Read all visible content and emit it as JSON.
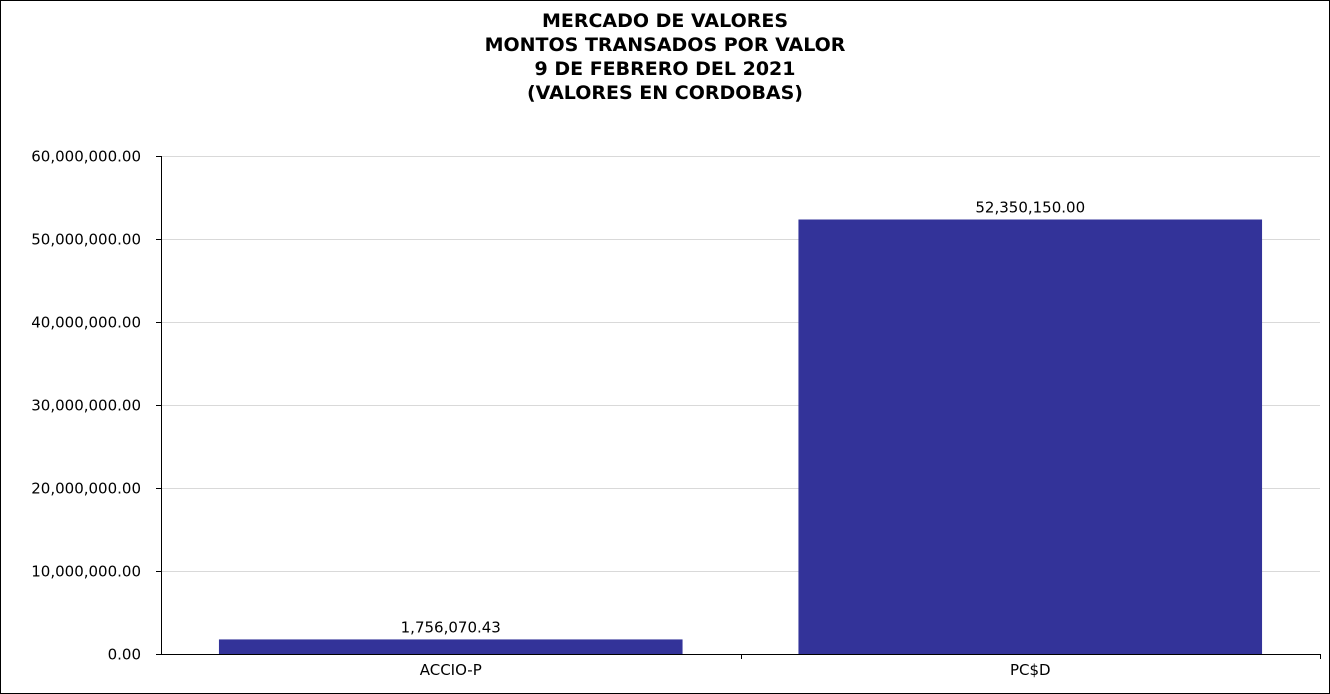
{
  "chart_data": {
    "type": "bar",
    "title_lines": [
      "MERCADO DE VALORES",
      "MONTOS TRANSADOS POR VALOR",
      "9 DE FEBRERO DEL 2021",
      "(VALORES EN CORDOBAS)"
    ],
    "categories": [
      "ACCIO-P",
      "PC$D"
    ],
    "values": [
      1756070.43,
      52350150.0
    ],
    "data_labels": [
      "1,756,070.43",
      "52,350,150.00"
    ],
    "y_ticks": [
      0,
      10000000,
      20000000,
      30000000,
      40000000,
      50000000,
      60000000
    ],
    "y_tick_labels": [
      "0.00",
      "10,000,000.00",
      "20,000,000.00",
      "30,000,000.00",
      "40,000,000.00",
      "50,000,000.00",
      "60,000,000.00"
    ],
    "ylim": [
      0,
      60000000
    ],
    "grid": true,
    "legend": "none",
    "bar_color": "#333399",
    "grid_color": "#d9d9d9",
    "axis_color": "#000000"
  }
}
